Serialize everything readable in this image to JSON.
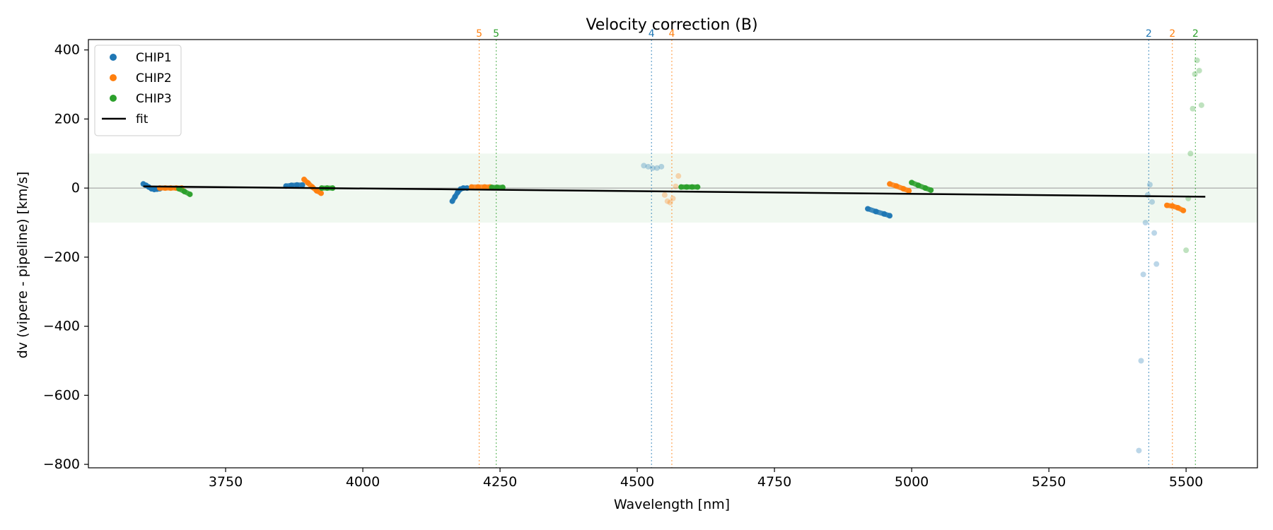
{
  "chart_data": {
    "type": "scatter",
    "title": "Velocity correction (B)",
    "xlabel": "Wavelength [nm]",
    "ylabel": "dv (vipere - pipeline) [km/s]",
    "xlim": [
      3500,
      5630
    ],
    "ylim": [
      -810,
      430
    ],
    "xticks": [
      3750,
      4000,
      4250,
      4500,
      4750,
      5000,
      5250,
      5500
    ],
    "yticks": [
      400,
      200,
      0,
      -200,
      -400,
      -600,
      -800
    ],
    "xtick_labels": [
      "3750",
      "4000",
      "4250",
      "4500",
      "4750",
      "5000",
      "5250",
      "5500"
    ],
    "ytick_labels": [
      "400",
      "200",
      "0",
      "−200",
      "−400",
      "−600",
      "−800"
    ],
    "colors": {
      "CHIP1": "#1f77b4",
      "CHIP2": "#ff7f0e",
      "CHIP3": "#2ca02c",
      "fit": "#000000",
      "band": "#2ca02c"
    },
    "band": {
      "y_low": -100,
      "y_high": 100
    },
    "zero_line": 0,
    "legend": {
      "position": "top-left",
      "entries": [
        {
          "label": "CHIP1",
          "kind": "marker",
          "series": "CHIP1"
        },
        {
          "label": "CHIP2",
          "kind": "marker",
          "series": "CHIP2"
        },
        {
          "label": "CHIP3",
          "kind": "marker",
          "series": "CHIP3"
        },
        {
          "label": "fit",
          "kind": "line",
          "series": "fit"
        }
      ]
    },
    "order_markers": [
      {
        "x": 4212,
        "label": "5",
        "series": "CHIP2"
      },
      {
        "x": 4243,
        "label": "5",
        "series": "CHIP3"
      },
      {
        "x": 4526,
        "label": "4",
        "series": "CHIP1"
      },
      {
        "x": 4563,
        "label": "4",
        "series": "CHIP2"
      },
      {
        "x": 5432,
        "label": "2",
        "series": "CHIP1"
      },
      {
        "x": 5475,
        "label": "2",
        "series": "CHIP2"
      },
      {
        "x": 5517,
        "label": "2",
        "series": "CHIP3"
      }
    ],
    "fit": {
      "x": [
        3600,
        5535
      ],
      "y": [
        5,
        -25
      ]
    },
    "segments": [
      {
        "series": "CHIP1",
        "x": [
          3600,
          3605,
          3610,
          3615,
          3620,
          3625,
          3630
        ],
        "y": [
          12,
          8,
          3,
          -2,
          -4,
          -3,
          -2
        ]
      },
      {
        "series": "CHIP2",
        "x": [
          3630,
          3640,
          3650,
          3660,
          3670
        ],
        "y": [
          0,
          0,
          0,
          0,
          0
        ]
      },
      {
        "series": "CHIP3",
        "x": [
          3665,
          3675,
          3685
        ],
        "y": [
          -2,
          -10,
          -18
        ]
      },
      {
        "series": "CHIP1",
        "x": [
          3860,
          3870,
          3880,
          3890
        ],
        "y": [
          6,
          8,
          9,
          9
        ]
      },
      {
        "series": "CHIP2",
        "x": [
          3893,
          3900,
          3908,
          3916,
          3924
        ],
        "y": [
          25,
          15,
          3,
          -8,
          -15
        ]
      },
      {
        "series": "CHIP3",
        "x": [
          3925,
          3935,
          3945
        ],
        "y": [
          0,
          0,
          0
        ]
      },
      {
        "series": "CHIP1",
        "x": [
          4163,
          4168,
          4173,
          4178,
          4183,
          4190
        ],
        "y": [
          -38,
          -25,
          -12,
          -3,
          0,
          0
        ]
      },
      {
        "series": "CHIP2",
        "x": [
          4198,
          4210,
          4222,
          4232
        ],
        "y": [
          3,
          3,
          3,
          3
        ]
      },
      {
        "series": "CHIP3",
        "x": [
          4235,
          4245,
          4255
        ],
        "y": [
          2,
          2,
          2
        ]
      },
      {
        "series": "CHIP1",
        "x": [
          4512,
          4520,
          4528,
          4536,
          4544
        ],
        "y": [
          65,
          62,
          58,
          58,
          62
        ],
        "faint": true
      },
      {
        "series": "CHIP2",
        "x": [
          4550,
          4555,
          4560,
          4565,
          4570,
          4575
        ],
        "y": [
          -20,
          -38,
          -42,
          -30,
          5,
          35
        ],
        "faint": true
      },
      {
        "series": "CHIP3",
        "x": [
          4580,
          4590,
          4600,
          4610
        ],
        "y": [
          3,
          3,
          3,
          3
        ]
      },
      {
        "series": "CHIP1",
        "x": [
          4920,
          4935,
          4950,
          4960
        ],
        "y": [
          -60,
          -68,
          -75,
          -80
        ]
      },
      {
        "series": "CHIP2",
        "x": [
          4960,
          4972,
          4985,
          4995
        ],
        "y": [
          12,
          6,
          -2,
          -8
        ]
      },
      {
        "series": "CHIP3",
        "x": [
          5000,
          5012,
          5025,
          5035
        ],
        "y": [
          16,
          8,
          0,
          -6
        ]
      },
      {
        "series": "CHIP1",
        "x": [
          5414,
          5418,
          5422,
          5426,
          5430,
          5434,
          5438,
          5442,
          5446
        ],
        "y": [
          -760,
          -500,
          -250,
          -100,
          -20,
          10,
          -40,
          -130,
          -220
        ],
        "faint": true
      },
      {
        "series": "CHIP2",
        "x": [
          5465,
          5475,
          5485,
          5495
        ],
        "y": [
          -50,
          -52,
          -57,
          -65
        ]
      },
      {
        "series": "CHIP3",
        "x": [
          5500,
          5504,
          5508,
          5512,
          5516,
          5520,
          5524,
          5528
        ],
        "y": [
          -180,
          -30,
          100,
          230,
          330,
          370,
          340,
          240
        ],
        "faint": true
      }
    ]
  }
}
